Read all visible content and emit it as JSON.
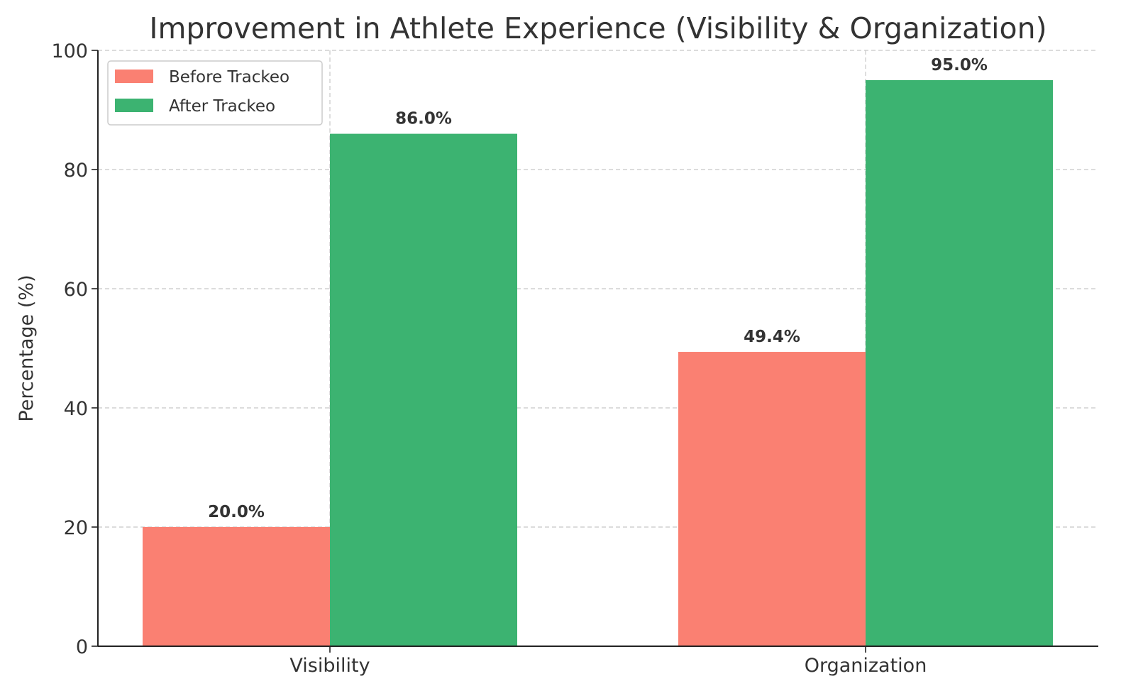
{
  "chart_data": {
    "type": "bar",
    "title": "Improvement in Athlete Experience (Visibility & Organization)",
    "xlabel": "",
    "ylabel": "Percentage (%)",
    "categories": [
      "Visibility",
      "Organization"
    ],
    "series": [
      {
        "name": "Before Trackeo",
        "color": "#fa8072",
        "values": [
          20.0,
          49.4
        ],
        "labels": [
          "20.0%",
          "49.4%"
        ]
      },
      {
        "name": "After Trackeo",
        "color": "#3cb371",
        "values": [
          86.0,
          95.0
        ],
        "labels": [
          "86.0%",
          "95.0%"
        ]
      }
    ],
    "ylim": [
      0,
      100
    ],
    "yticks": [
      0,
      20,
      40,
      60,
      80,
      100
    ],
    "ytick_labels": [
      "0",
      "20",
      "40",
      "60",
      "80",
      "100"
    ],
    "grid": true,
    "legend": "top-left"
  }
}
